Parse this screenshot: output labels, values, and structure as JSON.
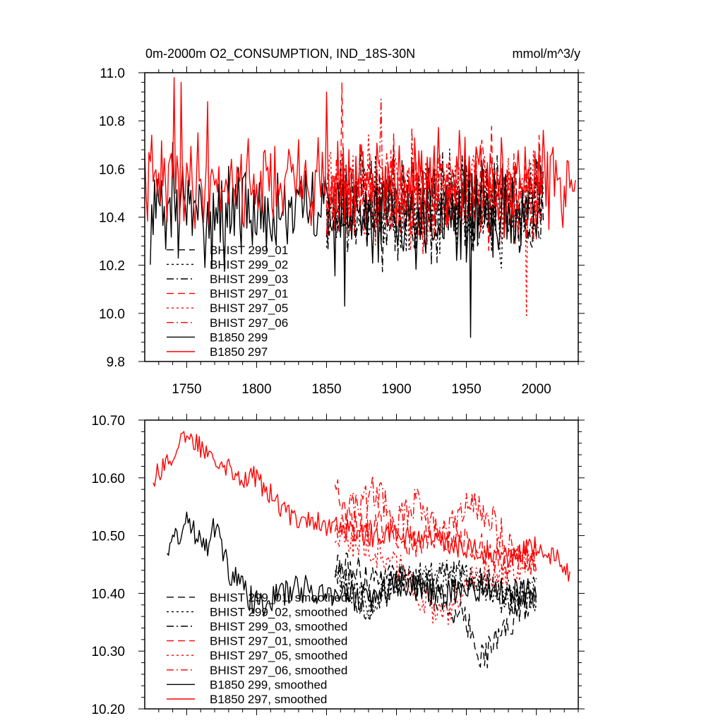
{
  "chart_data": [
    {
      "type": "line",
      "title": "0m-2000m O2_CONSUMPTION, IND_18S-30N",
      "units": "mmol/m^3/y",
      "xlim": [
        1720,
        2030
      ],
      "ylim": [
        9.8,
        11.0
      ],
      "xticks": [
        1750,
        1800,
        1850,
        1900,
        1950,
        2000
      ],
      "yticks": [
        9.8,
        10.0,
        10.2,
        10.4,
        10.6,
        10.8,
        11.0
      ],
      "ytick_labels": [
        "9.8",
        "10.0",
        "10.2",
        "10.4",
        "10.6",
        "10.8",
        "11.0"
      ],
      "legend_position": "bottom-left",
      "grid": false,
      "series": [
        {
          "name": "BHIST 299_01",
          "color": "#000000",
          "dash": "dashed",
          "start": 1850,
          "end": 2005,
          "mean": 10.44,
          "amp": 0.15,
          "seed": 11,
          "anchors": []
        },
        {
          "name": "BHIST 299_02",
          "color": "#000000",
          "dash": "dotted",
          "start": 1850,
          "end": 2005,
          "mean": 10.44,
          "amp": 0.15,
          "seed": 12,
          "anchors": []
        },
        {
          "name": "BHIST 299_03",
          "color": "#000000",
          "dash": "dashdot",
          "start": 1850,
          "end": 2005,
          "mean": 10.45,
          "amp": 0.15,
          "seed": 13,
          "anchors": []
        },
        {
          "name": "BHIST 297_01",
          "color": "#ff0000",
          "dash": "dashed",
          "start": 1850,
          "end": 2005,
          "mean": 10.5,
          "amp": 0.15,
          "seed": 21,
          "anchors": [
            [
              1861,
              10.96
            ]
          ]
        },
        {
          "name": "BHIST 297_05",
          "color": "#ff0000",
          "dash": "dotted",
          "start": 1850,
          "end": 2005,
          "mean": 10.49,
          "amp": 0.15,
          "seed": 22,
          "anchors": [
            [
              1993,
              9.99
            ]
          ]
        },
        {
          "name": "BHIST 297_06",
          "color": "#ff0000",
          "dash": "dashdot",
          "start": 1850,
          "end": 2005,
          "mean": 10.5,
          "amp": 0.15,
          "seed": 23,
          "anchors": [
            [
              1889,
              10.89
            ]
          ]
        },
        {
          "name": "B1850 299",
          "color": "#000000",
          "dash": "solid",
          "start": 1724,
          "end": 2003,
          "mean": 10.42,
          "amp": 0.15,
          "seed": 31,
          "anchors": [
            [
              1740,
              10.71
            ],
            [
              1863,
              10.03
            ],
            [
              1953,
              9.9
            ]
          ]
        },
        {
          "name": "B1850 297",
          "color": "#ff0000",
          "dash": "solid",
          "start": 1720,
          "end": 2028,
          "mean": 10.55,
          "amp": 0.14,
          "seed": 41,
          "anchors": [
            [
              1741,
              10.98
            ],
            [
              1746,
              10.96
            ],
            [
              1765,
              10.88
            ],
            [
              1850,
              10.92
            ]
          ]
        }
      ]
    },
    {
      "type": "line",
      "xlim": [
        1720,
        2030
      ],
      "ylim": [
        10.2,
        10.7
      ],
      "xticks": [
        1750,
        1800,
        1850,
        1900,
        1950,
        2000
      ],
      "yticks": [
        10.2,
        10.3,
        10.4,
        10.5,
        10.6,
        10.7
      ],
      "ytick_labels": [
        "10.20",
        "10.30",
        "10.40",
        "10.50",
        "10.60",
        "10.70"
      ],
      "legend_position": "bottom-left",
      "grid": false,
      "series": [
        {
          "name": "BHIST 299_01, smoothed",
          "color": "#000000",
          "dash": "dashed",
          "start": 1856,
          "end": 2000,
          "amp": 0.028,
          "seed": 111,
          "trend": [
            [
              1856,
              10.45
            ],
            [
              1880,
              10.43
            ],
            [
              1905,
              10.43
            ],
            [
              1925,
              10.4
            ],
            [
              1950,
              10.35
            ],
            [
              1962,
              10.29
            ],
            [
              1985,
              10.36
            ],
            [
              2000,
              10.4
            ]
          ]
        },
        {
          "name": "BHIST 299_02, smoothed",
          "color": "#000000",
          "dash": "dotted",
          "start": 1856,
          "end": 2000,
          "amp": 0.028,
          "seed": 112,
          "trend": [
            [
              1856,
              10.44
            ],
            [
              1880,
              10.38
            ],
            [
              1900,
              10.42
            ],
            [
              1925,
              10.42
            ],
            [
              1950,
              10.43
            ],
            [
              1975,
              10.4
            ],
            [
              2000,
              10.39
            ]
          ]
        },
        {
          "name": "BHIST 299_03, smoothed",
          "color": "#000000",
          "dash": "dashdot",
          "start": 1856,
          "end": 2000,
          "amp": 0.028,
          "seed": 113,
          "trend": [
            [
              1856,
              10.44
            ],
            [
              1880,
              10.37
            ],
            [
              1900,
              10.42
            ],
            [
              1930,
              10.43
            ],
            [
              1960,
              10.43
            ],
            [
              1980,
              10.38
            ],
            [
              2000,
              10.42
            ]
          ]
        },
        {
          "name": "BHIST 297_01, smoothed",
          "color": "#ff0000",
          "dash": "dashed",
          "start": 1856,
          "end": 2000,
          "amp": 0.028,
          "seed": 121,
          "trend": [
            [
              1856,
              10.6
            ],
            [
              1870,
              10.51
            ],
            [
              1890,
              10.52
            ],
            [
              1910,
              10.49
            ],
            [
              1940,
              10.5
            ],
            [
              1960,
              10.48
            ],
            [
              1980,
              10.45
            ],
            [
              2000,
              10.47
            ]
          ]
        },
        {
          "name": "BHIST 297_05, smoothed",
          "color": "#ff0000",
          "dash": "dotted",
          "start": 1856,
          "end": 2000,
          "amp": 0.028,
          "seed": 122,
          "trend": [
            [
              1856,
              10.5
            ],
            [
              1880,
              10.48
            ],
            [
              1900,
              10.45
            ],
            [
              1933,
              10.35
            ],
            [
              1950,
              10.42
            ],
            [
              1970,
              10.43
            ],
            [
              2000,
              10.46
            ]
          ]
        },
        {
          "name": "BHIST 297_06, smoothed",
          "color": "#ff0000",
          "dash": "dashdot",
          "start": 1856,
          "end": 2000,
          "amp": 0.03,
          "seed": 123,
          "trend": [
            [
              1856,
              10.52
            ],
            [
              1885,
              10.58
            ],
            [
              1900,
              10.52
            ],
            [
              1915,
              10.56
            ],
            [
              1935,
              10.5
            ],
            [
              1955,
              10.56
            ],
            [
              1970,
              10.52
            ],
            [
              1985,
              10.47
            ],
            [
              2000,
              10.45
            ]
          ]
        },
        {
          "name": "B1850 299, smoothed",
          "color": "#000000",
          "dash": "solid",
          "start": 1736,
          "end": 2000,
          "amp": 0.025,
          "seed": 131,
          "trend": [
            [
              1736,
              10.48
            ],
            [
              1750,
              10.52
            ],
            [
              1765,
              10.49
            ],
            [
              1770,
              10.52
            ],
            [
              1780,
              10.44
            ],
            [
              1800,
              10.38
            ],
            [
              1830,
              10.41
            ],
            [
              1850,
              10.4
            ],
            [
              1880,
              10.39
            ],
            [
              1900,
              10.42
            ],
            [
              1930,
              10.4
            ],
            [
              1960,
              10.41
            ],
            [
              2000,
              10.4
            ]
          ]
        },
        {
          "name": "B1850 297, smoothed",
          "color": "#ff0000",
          "dash": "solid",
          "start": 1726,
          "end": 2024,
          "amp": 0.02,
          "seed": 141,
          "trend": [
            [
              1726,
              10.6
            ],
            [
              1750,
              10.67
            ],
            [
              1770,
              10.64
            ],
            [
              1790,
              10.6
            ],
            [
              1800,
              10.6
            ],
            [
              1820,
              10.54
            ],
            [
              1850,
              10.52
            ],
            [
              1880,
              10.5
            ],
            [
              1900,
              10.5
            ],
            [
              1950,
              10.48
            ],
            [
              1980,
              10.46
            ],
            [
              2000,
              10.48
            ],
            [
              2010,
              10.47
            ],
            [
              2024,
              10.43
            ]
          ]
        }
      ]
    }
  ]
}
